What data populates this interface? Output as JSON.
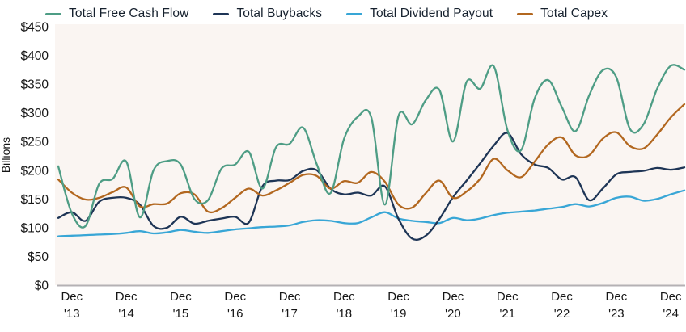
{
  "y_axis": {
    "title": "Billions",
    "ticks": [
      "$450",
      "$400",
      "$350",
      "$300",
      "$250",
      "$200",
      "$150",
      "$100",
      "$50",
      "$0"
    ],
    "min": 0,
    "max": 450,
    "step": 50
  },
  "x_axis": {
    "ticks": [
      {
        "month": "Dec",
        "year": "'13"
      },
      {
        "month": "Dec",
        "year": "'14"
      },
      {
        "month": "Dec",
        "year": "'15"
      },
      {
        "month": "Dec",
        "year": "'16"
      },
      {
        "month": "Dec",
        "year": "'17"
      },
      {
        "month": "Dec",
        "year": "'18"
      },
      {
        "month": "Dec",
        "year": "'19"
      },
      {
        "month": "Dec",
        "year": "'20"
      },
      {
        "month": "Dec",
        "year": "'21"
      },
      {
        "month": "Dec",
        "year": "'22"
      },
      {
        "month": "Dec",
        "year": "'23"
      },
      {
        "month": "Dec",
        "year": "'24"
      }
    ]
  },
  "chart_data": {
    "type": "line",
    "title": "",
    "ylabel": "Billions",
    "ylim": [
      0,
      450
    ],
    "grid": false,
    "legend_position": "top",
    "background": "#faf5f2",
    "axis_line_color": "#b4b1b4",
    "x_unit": "quarterly",
    "x_start": "Sep 2013",
    "x_end": "Mar 2025",
    "points_per_series": 47,
    "dec_tick_indices": [
      1,
      5,
      9,
      13,
      17,
      21,
      25,
      29,
      33,
      37,
      41,
      45
    ],
    "series": [
      {
        "name": "Total Free Cash Flow",
        "color": "#4e9d85",
        "values": [
          207,
          125,
          103,
          176,
          185,
          215,
          118,
          200,
          216,
          210,
          150,
          148,
          203,
          210,
          232,
          168,
          240,
          246,
          274,
          210,
          160,
          255,
          293,
          292,
          140,
          295,
          280,
          322,
          340,
          250,
          354,
          342,
          381,
          270,
          235,
          325,
          357,
          310,
          268,
          330,
          374,
          362,
          272,
          280,
          342,
          382,
          375
        ]
      },
      {
        "name": "Total Buybacks",
        "color": "#1e3556",
        "values": [
          117,
          127,
          112,
          145,
          152,
          152,
          140,
          103,
          100,
          119,
          107,
          112,
          116,
          119,
          109,
          172,
          182,
          183,
          199,
          200,
          168,
          158,
          161,
          156,
          172,
          115,
          81,
          86,
          115,
          153,
          182,
          212,
          243,
          265,
          228,
          210,
          204,
          184,
          188,
          148,
          168,
          193,
          197,
          199,
          204,
          201,
          205
        ]
      },
      {
        "name": "Total Dividend Payout",
        "color": "#38a6d6",
        "values": [
          85,
          86,
          87,
          88,
          89,
          91,
          94,
          90,
          92,
          96,
          93,
          91,
          94,
          97,
          99,
          101,
          102,
          104,
          110,
          113,
          112,
          108,
          108,
          118,
          127,
          116,
          112,
          110,
          108,
          117,
          113,
          116,
          122,
          126,
          128,
          130,
          133,
          136,
          141,
          137,
          143,
          152,
          154,
          147,
          150,
          158,
          165
        ]
      },
      {
        "name": "Total Capex",
        "color": "#b2671f",
        "values": [
          184,
          161,
          149,
          152,
          162,
          170,
          137,
          141,
          142,
          160,
          158,
          128,
          134,
          152,
          168,
          156,
          165,
          178,
          192,
          190,
          168,
          181,
          178,
          197,
          180,
          140,
          135,
          160,
          182,
          152,
          163,
          185,
          220,
          200,
          188,
          215,
          245,
          257,
          226,
          226,
          255,
          266,
          242,
          238,
          262,
          292,
          315
        ]
      }
    ]
  }
}
